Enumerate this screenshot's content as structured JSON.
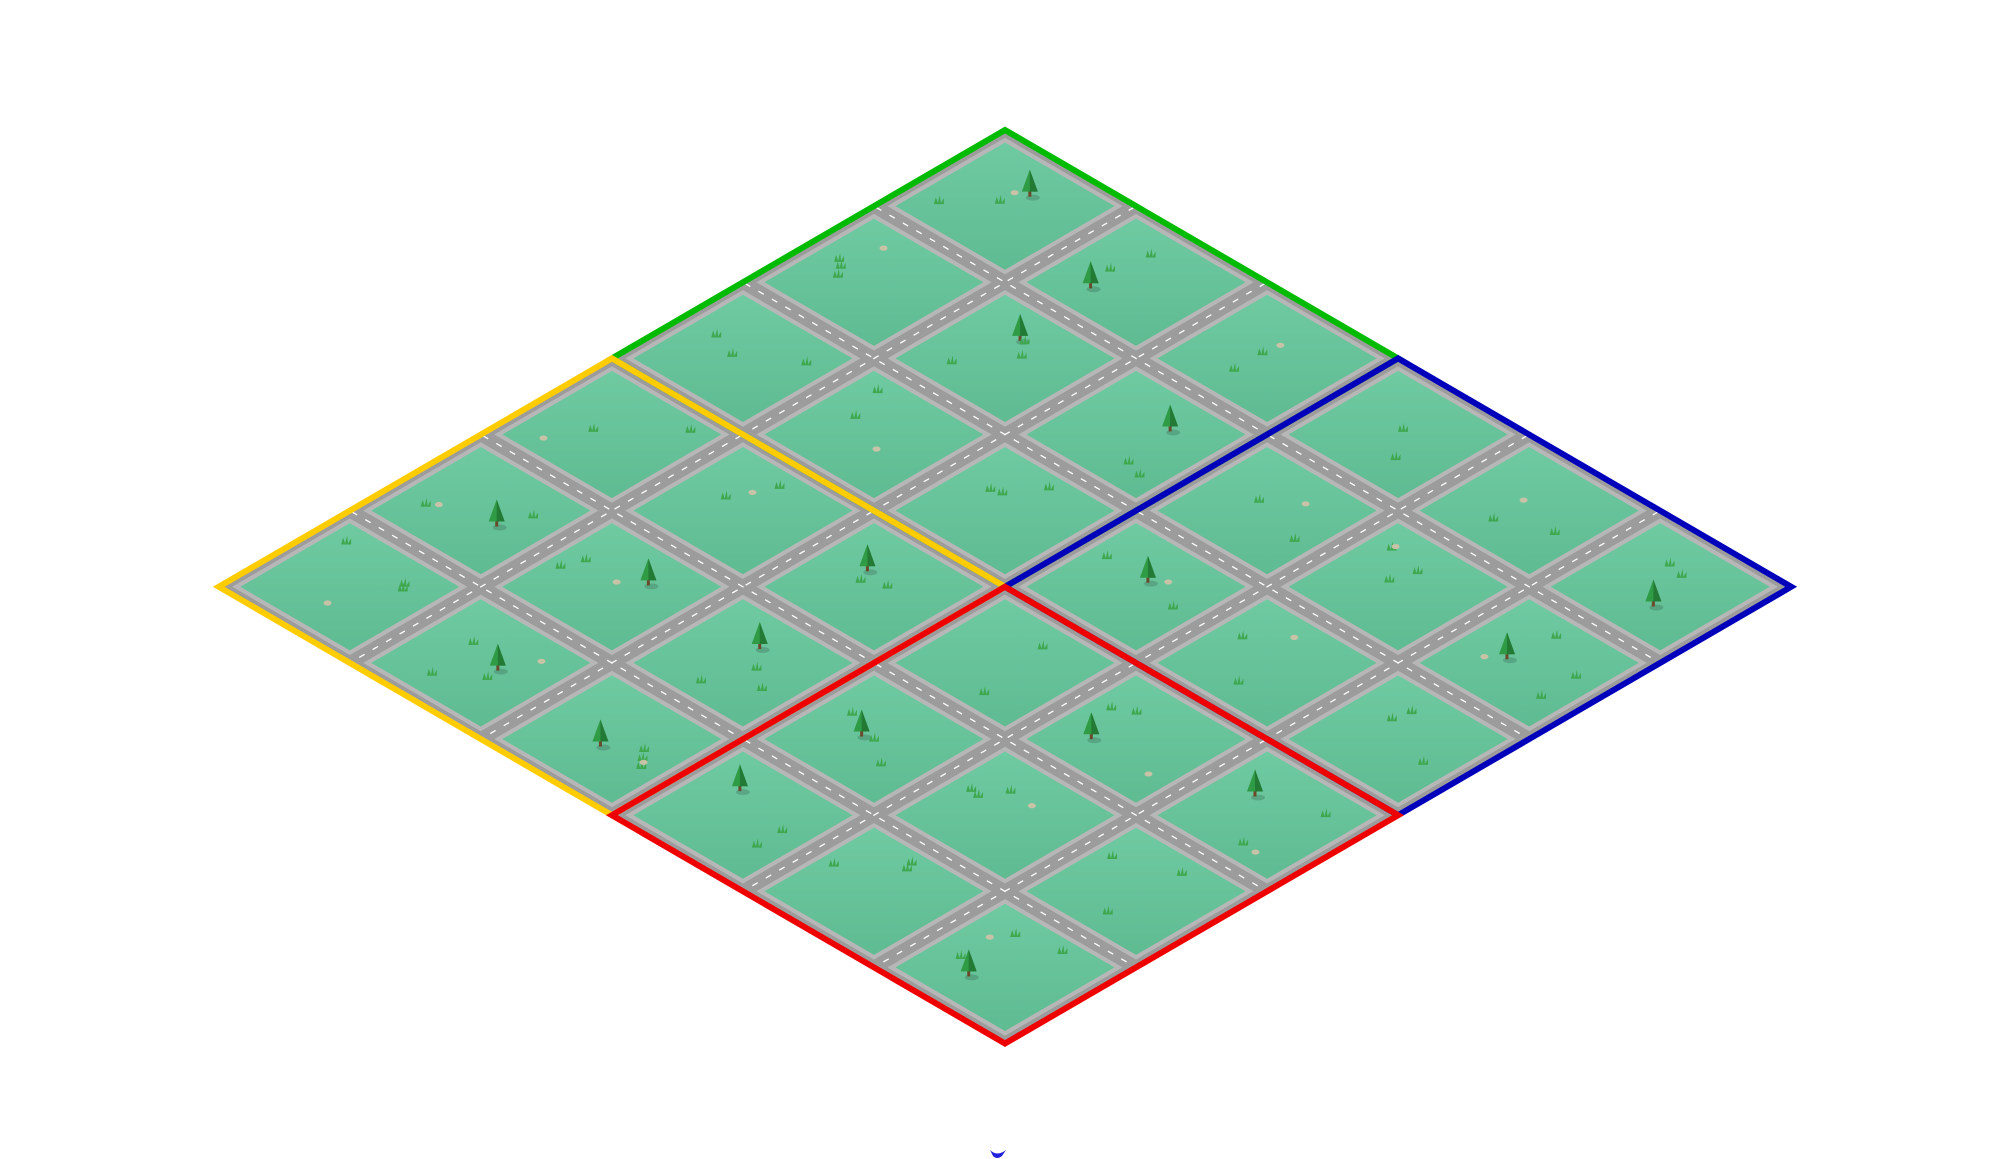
{
  "scene": {
    "kind": "isometric-city-grid",
    "background_color": "#ffffff",
    "grass_color": "#6fcaa2",
    "grass_dark_color": "#5fbb92",
    "road_color": "#9c9c9c",
    "road_marking_color": "#ffffff",
    "tree_color": "#2f9b45",
    "tree_trunk_color": "#6b4a2a",
    "bush_color": "#3fa84f",
    "rock_color": "#c8c3a6"
  },
  "districts": [
    {
      "id": "north",
      "border_color": "#00bb00",
      "blocks_per_side": 3
    },
    {
      "id": "west",
      "border_color": "#ffcc00",
      "blocks_per_side": 3
    },
    {
      "id": "east",
      "border_color": "#0000bb",
      "blocks_per_side": 3
    },
    {
      "id": "south",
      "border_color": "#ee0000",
      "blocks_per_side": 3
    }
  ],
  "cursor": {
    "icon": "chevron-down-icon",
    "color": "#2222dd"
  }
}
